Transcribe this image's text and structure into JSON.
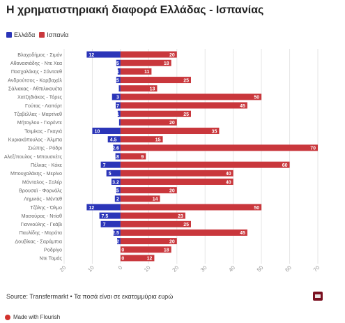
{
  "header": {
    "title": "Η χρηματιστηριακή διαφορά Ελλάδας - Ισπανίας"
  },
  "footer": {
    "source": "Source: Transfermarkt • Τα ποσά είναι σε εκατομμύρια ευρώ",
    "made_with": "Made with Flourish"
  },
  "colors": {
    "greece": "#2b35b8",
    "spain": "#c9373c"
  },
  "chart_data": {
    "type": "bar",
    "orientation": "horizontal-diverging",
    "title": "Η χρηματιστηριακή διαφορά Ελλάδας - Ισπανίας",
    "legend_position": "top-left",
    "grid": true,
    "xlim": [
      -20,
      70
    ],
    "x_ticks": [
      "20",
      "10",
      "0",
      "10",
      "20",
      "30",
      "40",
      "50",
      "60",
      "70"
    ],
    "categories": [
      "Βλαχοδήμος - Σιμόν",
      "Αθανασιάδης - Ντε Χεα",
      "Πασχαλάκης - Σάντσεθ",
      "Ανδρούτσος - Καρβαχάλ",
      "Σάλιακας - Αθπιλικουέτα",
      "Χατζηδιάκος - Τόρες",
      "Γούτας - Λαπόρτ",
      "Τζαβέλλας - Μαρτίνεθ",
      "Μήτογλου - Γιορέντε",
      "Τσιμίκας - Γκαγιά",
      "Κυριακόπουλος - Άλμπα",
      "Σιώπης - Ρόδρι",
      "Αλεξ/πουλος - Μπουσκέτς",
      "Πέλκας - Κόκε",
      "Μπουχαλάκης - Μερίνο",
      "Μάνταλος - Σολέρ",
      "Βρουσαϊ - Φορνάλς",
      "Λημνιός - Μέντεθ",
      "Τζόλης - Όλμο",
      "Μασούρας - Ντίαθ",
      "Γιαννούλης - Γκάβι",
      "Παυλίδης - Μοράτα",
      "Δουβίκας - Σαράμπια",
      "Ροδρίγο",
      "Ντε Τομάς"
    ],
    "series": [
      {
        "name": "Ελλάδα",
        "values": [
          12,
          1.5,
          1,
          1.5,
          0.6,
          3,
          1.7,
          1,
          0.5,
          10,
          4.5,
          2.6,
          1.8,
          7,
          5,
          3.2,
          1.5,
          2,
          12,
          7.5,
          7,
          2.5,
          1.2,
          0,
          0
        ],
        "labels": [
          "12",
          "1.5",
          "1",
          "1.5",
          "0.6",
          "3",
          "1.7",
          "1",
          "0.5",
          "10",
          "4.5",
          "2.6",
          "1.8",
          "7",
          "5",
          "3.2",
          "1.5",
          "2",
          "12",
          "7.5",
          "7",
          "2.5",
          "1.2",
          "0",
          "0"
        ]
      },
      {
        "name": "Ισπανία",
        "values": [
          20,
          18,
          11,
          25,
          13,
          50,
          45,
          25,
          20,
          35,
          15,
          70,
          9,
          60,
          40,
          40,
          20,
          14,
          50,
          23,
          25,
          45,
          20,
          18,
          12
        ],
        "labels": [
          "20",
          "18",
          "11",
          "25",
          "13",
          "50",
          "45",
          "25",
          "20",
          "35",
          "15",
          "70",
          "9",
          "60",
          "40",
          "40",
          "20",
          "14",
          "50",
          "23",
          "25",
          "45",
          "20",
          "18",
          "12"
        ]
      }
    ]
  }
}
